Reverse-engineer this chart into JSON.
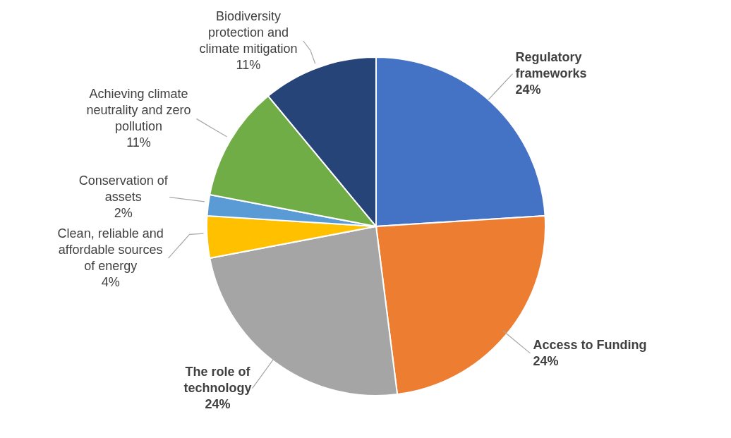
{
  "chart_data": {
    "type": "pie",
    "categories": [
      "Regulatory frameworks",
      "Access to Funding",
      "The role of technology",
      "Clean, reliable and affordable sources of energy",
      "Conservation of assets",
      "Achieving climate neutrality and zero pollution",
      "Biodiversity protection and climate mitigation"
    ],
    "values": [
      24,
      24,
      24,
      4,
      2,
      11,
      11
    ],
    "value_labels": [
      "24%",
      "24%",
      "24%",
      "4%",
      "2%",
      "11%",
      "11%"
    ],
    "colors": [
      "#4472c4",
      "#ed7d31",
      "#a5a5a5",
      "#ffc000",
      "#5b9bd5",
      "#70ad47",
      "#264478"
    ],
    "legend": false
  }
}
